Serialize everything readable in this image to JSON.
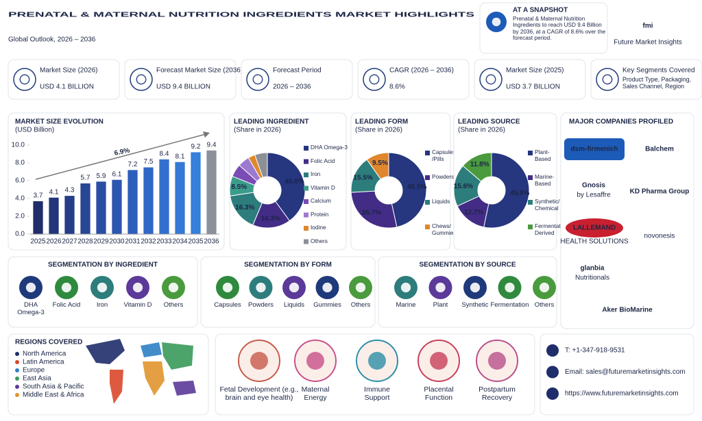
{
  "header": {
    "title": "PRENATAL & MATERNAL NUTRITION INGREDIENTS MARKET HIGHLIGHTS",
    "subtitle": "Global Outlook, 2026 – 2036"
  },
  "snapshot": {
    "title": "AT A SNAPSHOT",
    "text": "Prenatal & Maternal Nutrition Ingredients to reach USD 9.4 Billion by 2036, at a CAGR of 8.6% over the forecast period."
  },
  "logo": {
    "mark": "fmi",
    "name": "Future Market Insights"
  },
  "stats": [
    {
      "label": "Market Size (2026)",
      "value": "USD 4.1 BILLION"
    },
    {
      "label": "Forecast Market Size (2036)",
      "value": "USD 9.4 BILLION"
    },
    {
      "label": "Forecast Period",
      "value": "2026 – 2036"
    },
    {
      "label": "CAGR (2026 – 2036)",
      "value": "8.6%"
    },
    {
      "label": "Market Size (2025)",
      "value": "USD 3.7 BILLION"
    },
    {
      "label": "Key Segments Covered",
      "value": "Product Type, Packaging, Sales Channel, Region"
    }
  ],
  "chart_data": [
    {
      "type": "bar",
      "title": "MARKET SIZE EVOLUTION",
      "subtitle": "(USD Billion)",
      "annotation": "6.9%",
      "categories": [
        "2025",
        "2026",
        "2027",
        "2028",
        "2029",
        "2030",
        "2031",
        "2032",
        "2033",
        "2034",
        "2035",
        "2036"
      ],
      "values": [
        3.7,
        4.1,
        4.3,
        5.7,
        5.9,
        6.1,
        7.2,
        7.5,
        8.4,
        8.1,
        9.2,
        9.4
      ],
      "colors": [
        "#1f2d6b",
        "#22357a",
        "#253d88",
        "#284596",
        "#2a4ea3",
        "#2c56b0",
        "#2e5ebc",
        "#3067c6",
        "#3270cf",
        "#3479d6",
        "#367fdb",
        "#8c9099"
      ],
      "ylim": [
        0,
        10
      ],
      "yticks": [
        {
          "value": 0,
          "label": "0.0"
        },
        {
          "value": 2,
          "label": "2.0"
        },
        {
          "value": 4,
          "label": "4.0"
        },
        {
          "value": 6,
          "label": "6.0"
        },
        {
          "value": 8,
          "label": "8.0"
        },
        {
          "value": 10,
          "label": "10.0"
        }
      ]
    },
    {
      "type": "donut",
      "title": "LEADING INGREDIENT",
      "subtitle": "(Share in 2026)",
      "categories": [
        "DHA Omega-3",
        "Folic Acid",
        "Iron",
        "Vitamin D",
        "Calcium",
        "Protein",
        "Iodine",
        "Others"
      ],
      "values": [
        40.0,
        16.3,
        16.3,
        8.5,
        5.5,
        5.0,
        3.0,
        5.4
      ],
      "value_labels": [
        "40.0%",
        "16.3%",
        "16.3%",
        "8.5%",
        null,
        null,
        null,
        null
      ],
      "colors": [
        "#26367f",
        "#432c86",
        "#2d7d7c",
        "#3c9c8b",
        "#7a4cb4",
        "#9c7ad0",
        "#e0872d",
        "#8c8f96"
      ]
    },
    {
      "type": "donut",
      "title": "LEADING FORM",
      "subtitle": "(Share in 2026)",
      "categories": [
        "Capsules /Pills",
        "Powders",
        "Liquids",
        "Chews/ Gummies"
      ],
      "values": [
        45.0,
        26.7,
        15.5,
        9.5
      ],
      "value_labels": [
        "45.0%",
        "26.7%",
        "15.5%",
        "9.5%"
      ],
      "colors": [
        "#26367f",
        "#432c86",
        "#2d7d7c",
        "#e0872d"
      ]
    },
    {
      "type": "donut",
      "title": "LEADING SOURCE",
      "subtitle": "(Share in 2026)",
      "categories": [
        "Plant-Based",
        "Marine- Based",
        "Synthetic/ Chemical",
        "Fermentation- Derived"
      ],
      "values": [
        45.8,
        12.7,
        15.6,
        11.8
      ],
      "value_labels": [
        "45.8%",
        "12.7%",
        "15.6%",
        "11.8%"
      ],
      "colors": [
        "#26367f",
        "#432c86",
        "#2d7d7c",
        "#4a9a3e"
      ]
    }
  ],
  "segmentation": [
    {
      "title": "SEGMENTATION BY INGREDIENT",
      "items": [
        "DHA Omega-3",
        "Folic Acid",
        "Iron",
        "Vitamin D",
        "Others"
      ]
    },
    {
      "title": "SEGMENTATION BY FORM",
      "items": [
        "Capsules",
        "Powders",
        "Liquids",
        "Gummies",
        "Others"
      ]
    },
    {
      "title": "SEGMENTATION BY SOURCE",
      "items": [
        "Marine",
        "Plant",
        "Synthetic",
        "Fermentation",
        "Others"
      ]
    }
  ],
  "companies": {
    "title": "MAJOR COMPANIES PROFILED",
    "items": [
      {
        "name": "dsm-firmenich"
      },
      {
        "name": "Balchem"
      },
      {
        "name": "Gnosis",
        "sub": "by Lesaffre"
      },
      {
        "name": "KD Pharma Group"
      },
      {
        "name": "LALLEMAND",
        "sub": "HEALTH SOLUTIONS"
      },
      {
        "name": "novonesis"
      },
      {
        "name": "glanbia",
        "sub": "Nutritionals"
      },
      {
        "name": "Aker BioMarine"
      }
    ]
  },
  "regions": {
    "title": "REGIONS COVERED",
    "items": [
      {
        "name": "North America",
        "color": "#1f2d6b"
      },
      {
        "name": "Latin America",
        "color": "#d9482b"
      },
      {
        "name": "Europe",
        "color": "#2f7fc4"
      },
      {
        "name": "East Asia",
        "color": "#3a9a5a"
      },
      {
        "name": "South Asia & Pacific",
        "color": "#5b3a9a"
      },
      {
        "name": "Middle East & Africa",
        "color": "#e0952d"
      }
    ]
  },
  "benefits": [
    "Fetal Development (e.g., brain and eye health)",
    "Maternal Energy",
    "Immune Support",
    "Placental Function",
    "Postpartum Recovery"
  ],
  "contact": [
    "T: +1-347-918-9531",
    "Email: sales@futuremarketinsights.com",
    "https://www.futuremarketinsights.com"
  ]
}
